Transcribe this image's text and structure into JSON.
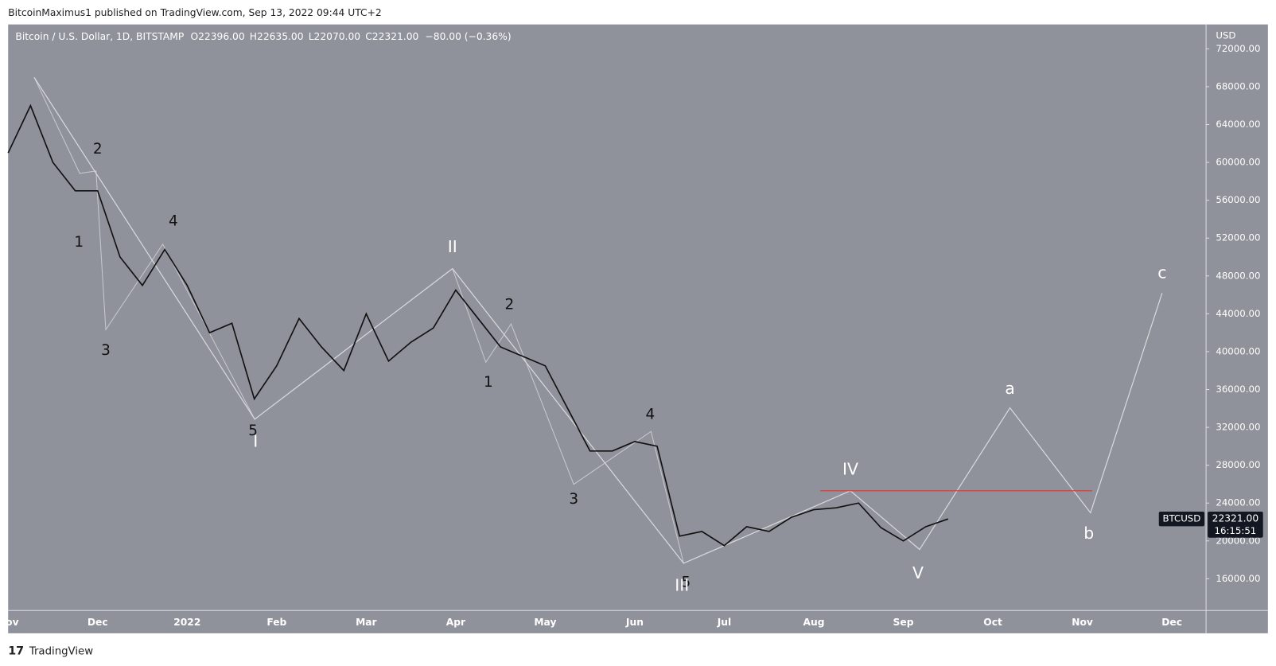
{
  "header": {
    "published": "BitcoinMaximus1 published on TradingView.com, Sep 13, 2022 09:44 UTC+2"
  },
  "footer": {
    "brand": "TradingView"
  },
  "chart_data": {
    "type": "line",
    "title": "Bitcoin / U.S. Dollar, 1D, BITSTAMP",
    "ohlc": [
      {
        "key": "O",
        "label": "22396.00"
      },
      {
        "key": "H",
        "label": "22635.00"
      },
      {
        "key": "L",
        "label": "22070.00"
      },
      {
        "key": "C",
        "label": "22321.00"
      }
    ],
    "change": "−80.00 (−0.36%)",
    "y_axis_label": "USD",
    "symbol": "BTCUSD",
    "last_price": {
      "value": 22321,
      "label": "22321.00"
    },
    "countdown": "16:15:51",
    "categories": [
      "Nov",
      null,
      null,
      null,
      "Dec",
      null,
      null,
      null,
      "2022",
      null,
      null,
      null,
      "Feb",
      null,
      null,
      null,
      "Mar",
      null,
      null,
      null,
      "Apr",
      null,
      null,
      null,
      "May",
      null,
      null,
      null,
      "Jun",
      null,
      null,
      null,
      "Jul",
      null,
      null,
      null,
      "Aug",
      null,
      null,
      null,
      "Sep",
      null,
      null,
      null,
      "Oct",
      null,
      null,
      null,
      "Nov",
      null,
      null,
      null,
      "Dec",
      null
    ],
    "series": [
      {
        "name": "BTCUSD",
        "color": "#111111",
        "values": [
          61000,
          66000,
          60000,
          57000,
          57000,
          50000,
          47000,
          50800,
          47000,
          42000,
          43000,
          35000,
          38500,
          43500,
          40500,
          38000,
          44000,
          39000,
          41000,
          42500,
          46500,
          43500,
          40500,
          39500,
          38500,
          34000,
          29500,
          29500,
          30500,
          30000,
          20500,
          21000,
          19500,
          21500,
          21000,
          22500,
          23300,
          23500,
          24000,
          21400,
          20000,
          21500,
          22321,
          null,
          null,
          null,
          null,
          null,
          null,
          null,
          null,
          null,
          null,
          null
        ]
      }
    ],
    "ylim": [
      12645,
      74580
    ],
    "yticks": [
      {
        "value": 16000,
        "label": "16000.00"
      },
      {
        "value": 20000,
        "label": "20000.00"
      },
      {
        "value": 24000,
        "label": "24000.00"
      },
      {
        "value": 28000,
        "label": "28000.00"
      },
      {
        "value": 32000,
        "label": "32000.00"
      },
      {
        "value": 36000,
        "label": "36000.00"
      },
      {
        "value": 40000,
        "label": "40000.00"
      },
      {
        "value": 44000,
        "label": "44000.00"
      },
      {
        "value": 48000,
        "label": "48000.00"
      },
      {
        "value": 52000,
        "label": "52000.00"
      },
      {
        "value": 56000,
        "label": "56000.00"
      },
      {
        "value": 60000,
        "label": "60000.00"
      },
      {
        "value": 64000,
        "label": "64000.00"
      },
      {
        "value": 68000,
        "label": "68000.00"
      },
      {
        "value": 72000,
        "label": "72000.00"
      }
    ],
    "hline": {
      "value": 25300,
      "color": "#e53935"
    },
    "annotations": [
      "2",
      "1",
      "4",
      "3",
      "5",
      "I",
      "II",
      "2",
      "1",
      "4",
      "3",
      "5",
      "III",
      "IV",
      "V",
      "a",
      "b",
      "c"
    ]
  }
}
